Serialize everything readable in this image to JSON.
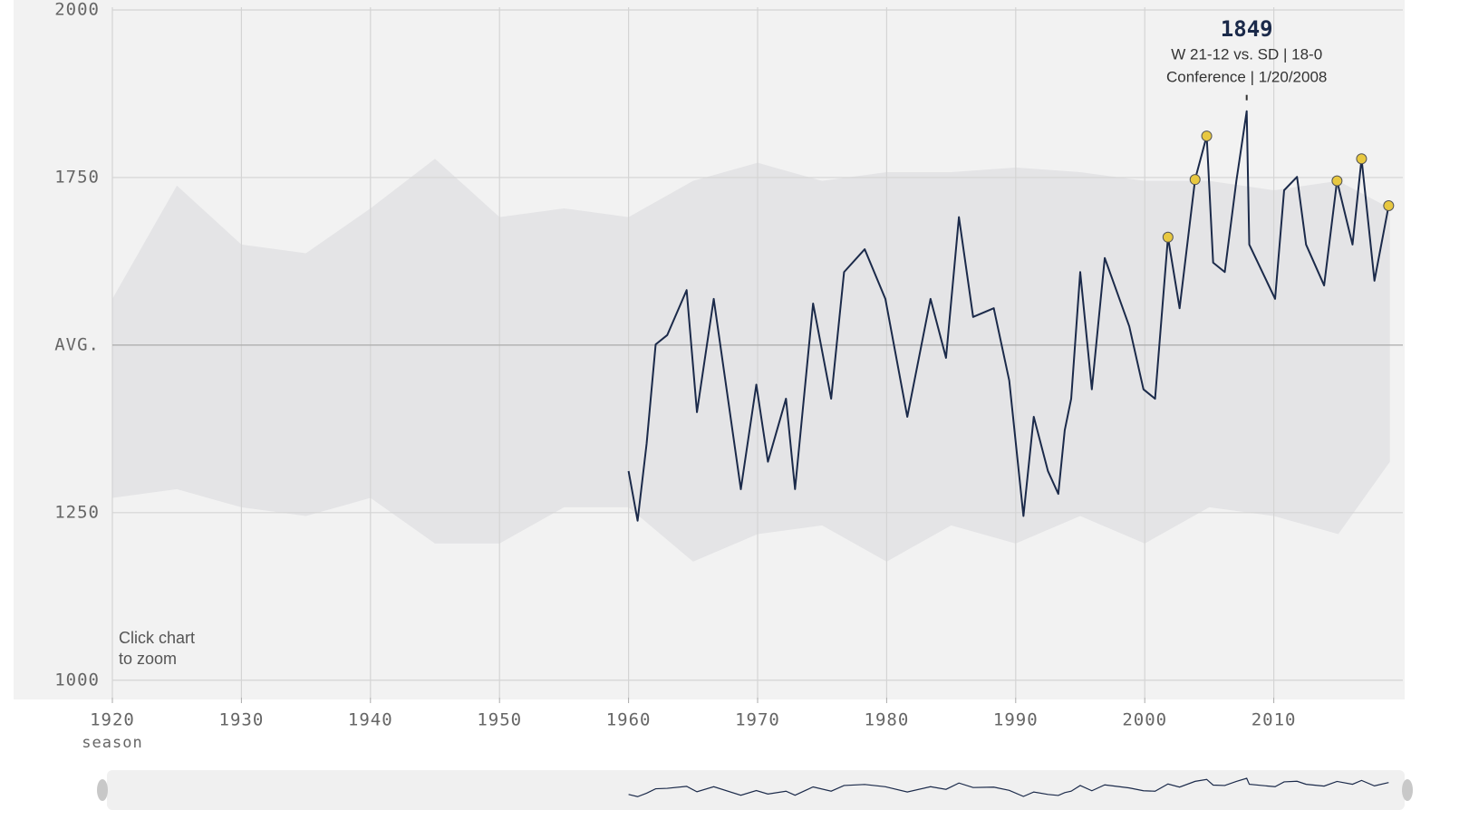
{
  "chart_data": {
    "type": "line",
    "xlabel": "season",
    "note": [
      "Click chart",
      "to zoom"
    ],
    "xlim": [
      1920,
      2020
    ],
    "xticks": [
      1920,
      1930,
      1940,
      1950,
      1960,
      1970,
      1980,
      1990,
      2000,
      2010
    ],
    "ylim": [
      974,
      2000
    ],
    "yticks": [
      1000,
      1250,
      {
        "value": 1500,
        "label": "AVG."
      },
      1750,
      2000
    ],
    "grid": true,
    "band": {
      "color": "#e4e4e6",
      "x": [
        1920,
        1925,
        1930,
        1935,
        1940,
        1945,
        1950,
        1955,
        1960,
        1965,
        1970,
        1975,
        1980,
        1985,
        1990,
        1995,
        2000,
        2005,
        2010,
        2015,
        2019
      ],
      "upper": [
        1569,
        1738,
        1650,
        1637,
        1704,
        1778,
        1691,
        1704,
        1691,
        1745,
        1772,
        1745,
        1758,
        1758,
        1765,
        1758,
        1745,
        1745,
        1731,
        1745,
        1704
      ],
      "lower": [
        1272,
        1285,
        1258,
        1245,
        1272,
        1204,
        1204,
        1258,
        1258,
        1177,
        1218,
        1231,
        1177,
        1231,
        1204,
        1245,
        1204,
        1258,
        1245,
        1218,
        1326
      ]
    },
    "series": [
      {
        "color": "#1b2a4a",
        "x": [
          1960.0,
          1960.7,
          1961.4,
          1962.1,
          1963.0,
          1964.5,
          1965.3,
          1966.6,
          1968.7,
          1969.9,
          1970.8,
          1972.2,
          1972.9,
          1974.3,
          1975.7,
          1976.7,
          1978.3,
          1979.9,
          1981.6,
          1983.4,
          1984.6,
          1985.6,
          1986.7,
          1988.3,
          1989.5,
          1990.6,
          1991.4,
          1992.5,
          1993.3,
          1993.8,
          1994.3,
          1995.0,
          1995.9,
          1996.9,
          1998.8,
          1999.9,
          2000.8,
          2001.8,
          2002.7,
          2003.9,
          2004.8,
          2005.3,
          2006.2,
          2007.1,
          2007.9,
          2008.1,
          2010.1,
          2010.8,
          2011.8,
          2012.5,
          2013.9,
          2014.9,
          2016.1,
          2016.8,
          2017.8,
          2018.9
        ],
        "values": [
          1312,
          1238,
          1353,
          1501,
          1515,
          1582,
          1400,
          1569,
          1285,
          1441,
          1326,
          1420,
          1285,
          1562,
          1420,
          1609,
          1643,
          1569,
          1393,
          1569,
          1481,
          1691,
          1542,
          1555,
          1447,
          1245,
          1393,
          1312,
          1278,
          1373,
          1420,
          1609,
          1434,
          1630,
          1528,
          1434,
          1420,
          1661,
          1555,
          1747,
          1812,
          1623,
          1609,
          1745,
          1849,
          1650,
          1569,
          1731,
          1751,
          1650,
          1589,
          1745,
          1650,
          1778,
          1596,
          1708
        ]
      }
    ],
    "highlights": {
      "color": "#e8c840",
      "x": [
        2001.8,
        2003.9,
        2004.8,
        2014.9,
        2016.8,
        2018.9
      ],
      "values": [
        1661,
        1747,
        1812,
        1745,
        1778,
        1708
      ]
    },
    "annotation": {
      "x": 2007.9,
      "value": 1849,
      "lines": [
        "W 21-12 vs. SD | 18-0",
        "Conference | 1/20/2008"
      ]
    }
  }
}
